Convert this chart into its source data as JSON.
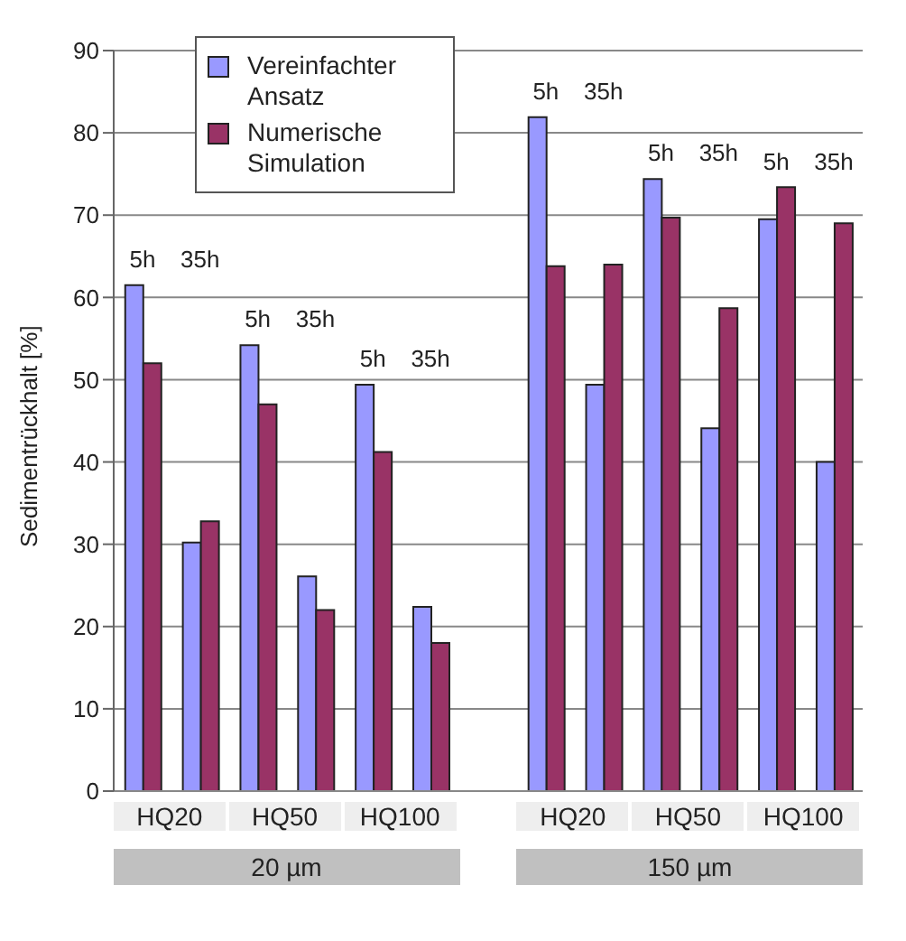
{
  "chart_data": {
    "type": "bar",
    "ylabel": "Sedimentrückhalt [%]",
    "categories": [
      null,
      null,
      null,
      null,
      null,
      null,
      null,
      null,
      null,
      null,
      null,
      null,
      null
    ],
    "series": [
      {
        "name": "Vereinfachter Ansatz",
        "color": "#9999ff",
        "values": [
          61.5,
          30.2,
          54.2,
          26.1,
          49.4,
          22.4,
          null,
          81.9,
          49.4,
          74.4,
          44.1,
          69.5,
          40
        ]
      },
      {
        "name": "Numerische Simulation",
        "color": "#993366",
        "values": [
          52,
          32.8,
          47,
          22,
          41.2,
          18,
          null,
          63.8,
          64,
          69.7,
          58.7,
          73.4,
          69
        ]
      }
    ],
    "ylim": [
      0,
      90
    ],
    "yticks": [
      0,
      10,
      20,
      30,
      40,
      50,
      60,
      70,
      80,
      90
    ],
    "grid": "y",
    "legend": "top left",
    "annotations": [
      "5h",
      "35h",
      "5h",
      "35h",
      "5h",
      "35h",
      "5h",
      "35h",
      "5h",
      "35h",
      "5h",
      "35h",
      "HQ20",
      "HQ50",
      "HQ100",
      "HQ20",
      "HQ50",
      "HQ100",
      "20 µm",
      "150 µm"
    ]
  }
}
